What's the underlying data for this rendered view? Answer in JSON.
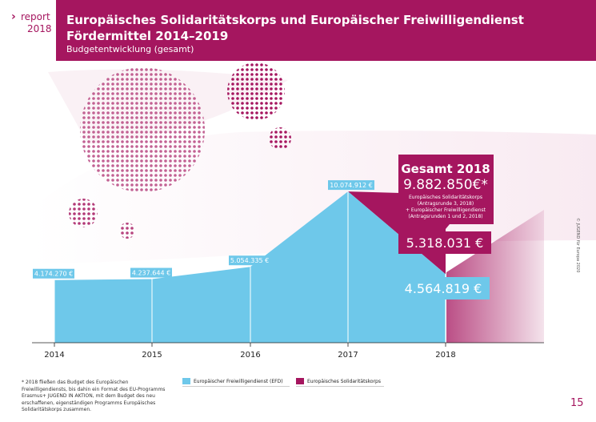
{
  "header": {
    "brand_word": "report",
    "brand_year": "2018",
    "title_line1": "Europäisches Solidaritätskorps und Europäischer Freiwilligendienst",
    "title_line2": "Fördermittel 2014–2019",
    "subtitle": "Budgetentwicklung (gesamt)"
  },
  "colors": {
    "efd": "#6ec8ea",
    "esk": "#a5165f",
    "brand": "#a5165f"
  },
  "chart_data": {
    "type": "area",
    "title": "Europäisches Solidaritätskorps und Europäischer Freiwilligendienst Fördermittel 2014–2019",
    "subtitle": "Budgetentwicklung (gesamt)",
    "x": [
      "2014",
      "2015",
      "2016",
      "2017",
      "2018"
    ],
    "series": [
      {
        "name": "Europäischer Freiwilligendienst (EFD)",
        "color": "#6ec8ea",
        "values": [
          4174270,
          4237644,
          5054335,
          10074912,
          4564819
        ],
        "labels": [
          "4.174.270 €",
          "4.237.644 €",
          "5.054.335 €",
          "10.074.912 €",
          "4.564.819 €"
        ]
      },
      {
        "name": "Europäisches Solidaritätskorps",
        "color": "#a5165f",
        "values": [
          0,
          0,
          0,
          0,
          5318031
        ],
        "labels": [
          "",
          "",
          "",
          "",
          "5.318.031 €"
        ]
      }
    ],
    "ylim": [
      0,
      16000000
    ],
    "grid": false,
    "legend": "bottom",
    "total_callout": {
      "title": "Gesamt 2018",
      "value": "9.882.850€*",
      "line1": "Europäisches Solidaritätskorps",
      "line2": "(Antragsrunde 3, 2018)",
      "line3": "+ Europäischer Freiwilligendienst",
      "line4": "(Antragsrunden 1 und 2, 2018)"
    }
  },
  "legend": {
    "efd": "Europäischer Freiwilligendienst (EFD)",
    "esk": "Europäisches Solidaritätskorps"
  },
  "footnote": "* 2018 fließen das Budget des Europäischen Freiwilligendiensts, bis dahin ein Format des EU-Programms Erasmus+ JUGEND IN AKTION, mit dem Budget des neu erschaffenen, eigenständigen Programms Europäisches Solidaritätskorps zusammen.",
  "credit": "© JUGEND für Europa 2020",
  "page_number": "15"
}
